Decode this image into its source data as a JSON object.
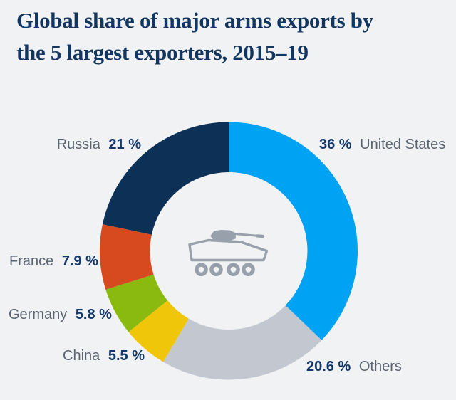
{
  "page": {
    "background_color": "#f1f2f4"
  },
  "title": {
    "line1": "Global share of major arms exports by",
    "line2": "the 5 largest exporters, 2015–19",
    "full": "Global share of major arms exports by the 5 largest exporters, 2015–19",
    "color": "#12365f"
  },
  "chart_data": {
    "type": "pie",
    "variant": "donut",
    "title": "Global share of major arms exports by the 5 largest exporters, 2015–19",
    "unit": "%",
    "start_angle_deg": 0,
    "direction": "clockwise",
    "legend_position": "labels-around-donut",
    "center_icon": "armored-vehicle",
    "center_icon_color": "#98a0ac",
    "segments": [
      {
        "label": "United States",
        "value": 36,
        "display": "36 %",
        "color": "#00a2f3"
      },
      {
        "label": "Others",
        "value": 20.6,
        "display": "20.6 %",
        "color": "#c3c8d0"
      },
      {
        "label": "China",
        "value": 5.5,
        "display": "5.5 %",
        "color": "#f0c60a"
      },
      {
        "label": "Germany",
        "value": 5.8,
        "display": "5.8 %",
        "color": "#8aba10"
      },
      {
        "label": "France",
        "value": 7.9,
        "display": "7.9 %",
        "color": "#d7491f"
      },
      {
        "label": "Russia",
        "value": 21,
        "display": "21 %",
        "color": "#0d3057"
      }
    ],
    "label_text_color": "#5a6470",
    "value_text_color": "#15386b"
  }
}
